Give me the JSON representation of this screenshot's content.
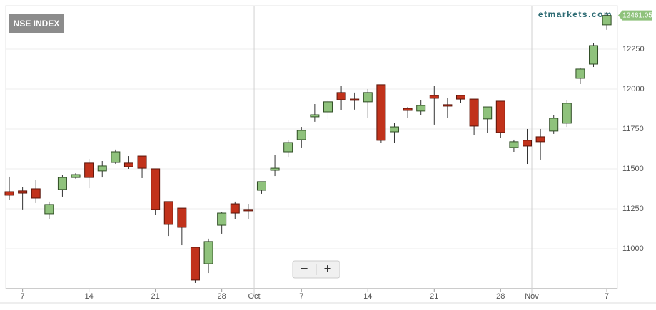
{
  "chart_data": {
    "type": "candlestick",
    "title": "NSE INDEX",
    "watermark": "etmarkets.com",
    "open": [
      11357,
      11362,
      11375,
      11219,
      11371,
      11446,
      11536,
      11487,
      11540,
      11536,
      11580,
      11500,
      11295,
      11254,
      11009,
      10906,
      11147,
      11281,
      11246,
      11366,
      11491,
      11607,
      11683,
      11826,
      11857,
      11978,
      11937,
      11920,
      12027,
      11732,
      11879,
      11862,
      11960,
      11902,
      11960,
      11937,
      11813,
      11924,
      11634,
      11679,
      11701,
      11737,
      11786,
      12067,
      12156,
      12402
    ],
    "high": [
      11451,
      11384,
      11433,
      11295,
      11460,
      11473,
      11562,
      11549,
      11621,
      11580,
      11580,
      11500,
      11295,
      11254,
      11009,
      11063,
      11232,
      11295,
      11281,
      11420,
      11585,
      11679,
      11763,
      11906,
      11933,
      12022,
      11978,
      12000,
      12027,
      11790,
      11888,
      11929,
      12018,
      11946,
      11964,
      11937,
      11888,
      11924,
      11683,
      11750,
      11750,
      11839,
      11933,
      12134,
      12286,
      12482
    ],
    "low": [
      11304,
      11246,
      11286,
      11183,
      11326,
      11438,
      11379,
      11446,
      11531,
      11500,
      11442,
      11210,
      11080,
      11022,
      10786,
      10848,
      11094,
      11183,
      11183,
      11344,
      11455,
      11571,
      11634,
      11795,
      11813,
      11866,
      11871,
      11817,
      11661,
      11665,
      11821,
      11839,
      11777,
      11821,
      11911,
      11710,
      11723,
      11692,
      11607,
      11531,
      11558,
      11719,
      11763,
      12031,
      12138,
      12371
    ],
    "close": [
      11335,
      11348,
      11317,
      11277,
      11446,
      11464,
      11446,
      11518,
      11607,
      11513,
      11504,
      11246,
      11152,
      11134,
      10804,
      11045,
      11223,
      11223,
      11237,
      11420,
      11504,
      11665,
      11741,
      11839,
      11920,
      11933,
      11929,
      11978,
      11679,
      11763,
      11866,
      11897,
      11942,
      11893,
      11937,
      11768,
      11888,
      11728,
      11670,
      11643,
      11670,
      11817,
      11911,
      12125,
      12272,
      12461.05
    ],
    "up_color": "#8fc27c",
    "down_color": "#c1321b",
    "ylim": [
      10750,
      12522
    ],
    "yticks": [
      11000,
      11250,
      11500,
      11750,
      12000,
      12250
    ],
    "xlim": [
      -0.27,
      45.8
    ],
    "xticks": [
      {
        "value": 1,
        "label": "7"
      },
      {
        "value": 6,
        "label": "14"
      },
      {
        "value": 11,
        "label": "21"
      },
      {
        "value": 16,
        "label": "28"
      },
      {
        "value": 22,
        "label": "7"
      },
      {
        "value": 27,
        "label": "14"
      },
      {
        "value": 32,
        "label": "21"
      },
      {
        "value": 37,
        "label": "28"
      },
      {
        "value": 45,
        "label": "7"
      }
    ],
    "xticks_major": [
      {
        "value": 18.44,
        "label": "Oct"
      },
      {
        "value": 39.35,
        "label": "Nov"
      }
    ],
    "grid": true
  },
  "zoom_controls": [
    "−",
    "+"
  ]
}
